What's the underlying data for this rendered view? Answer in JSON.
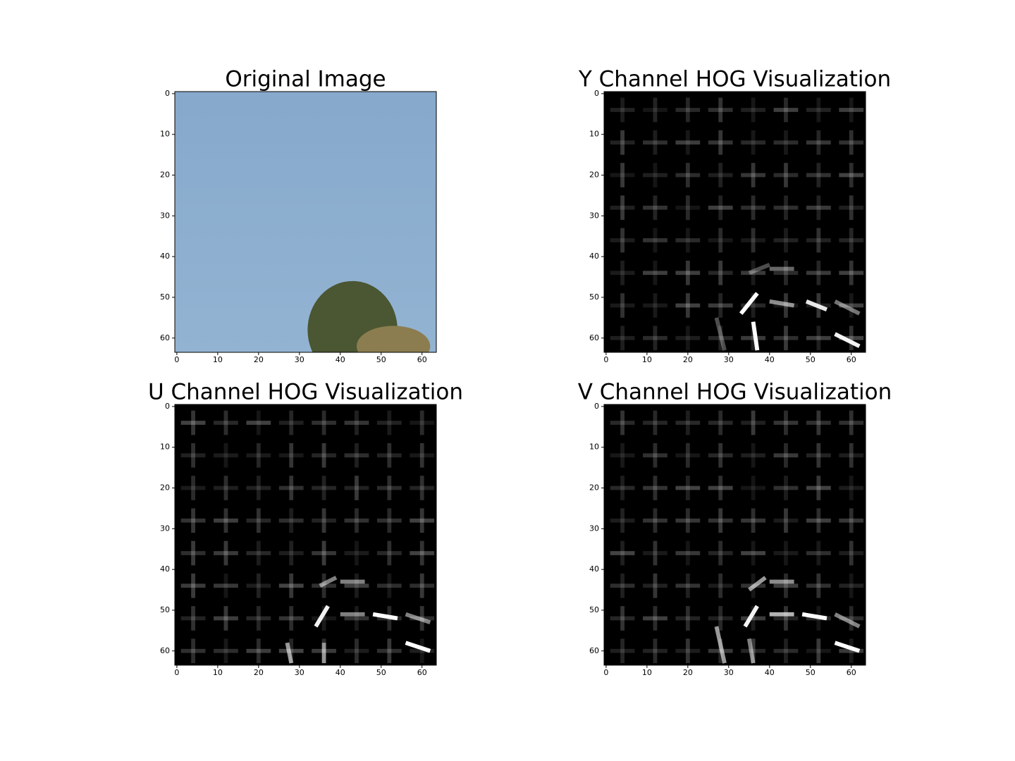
{
  "chart_data": [
    {
      "type": "image",
      "title": "Original Image",
      "image": "rgb",
      "xlim": [
        -0.5,
        63.5
      ],
      "ylim": [
        63.5,
        -0.5
      ],
      "xticks": [
        0,
        10,
        20,
        30,
        40,
        50,
        60
      ],
      "yticks": [
        0,
        10,
        20,
        30,
        40,
        50,
        60
      ]
    },
    {
      "type": "image",
      "title": "Y Channel HOG Visualization",
      "image": "hog",
      "xlim": [
        -0.5,
        63.5
      ],
      "ylim": [
        63.5,
        -0.5
      ],
      "xticks": [
        0,
        10,
        20,
        30,
        40,
        50,
        60
      ],
      "yticks": [
        0,
        10,
        20,
        30,
        40,
        50,
        60
      ]
    },
    {
      "type": "image",
      "title": "U Channel HOG Visualization",
      "image": "hog",
      "xlim": [
        -0.5,
        63.5
      ],
      "ylim": [
        63.5,
        -0.5
      ],
      "xticks": [
        0,
        10,
        20,
        30,
        40,
        50,
        60
      ],
      "yticks": [
        0,
        10,
        20,
        30,
        40,
        50,
        60
      ]
    },
    {
      "type": "image",
      "title": "V Channel HOG Visualization",
      "image": "hog",
      "xlim": [
        -0.5,
        63.5
      ],
      "ylim": [
        63.5,
        -0.5
      ],
      "xticks": [
        0,
        10,
        20,
        30,
        40,
        50,
        60
      ],
      "yticks": [
        0,
        10,
        20,
        30,
        40,
        50,
        60
      ]
    }
  ]
}
